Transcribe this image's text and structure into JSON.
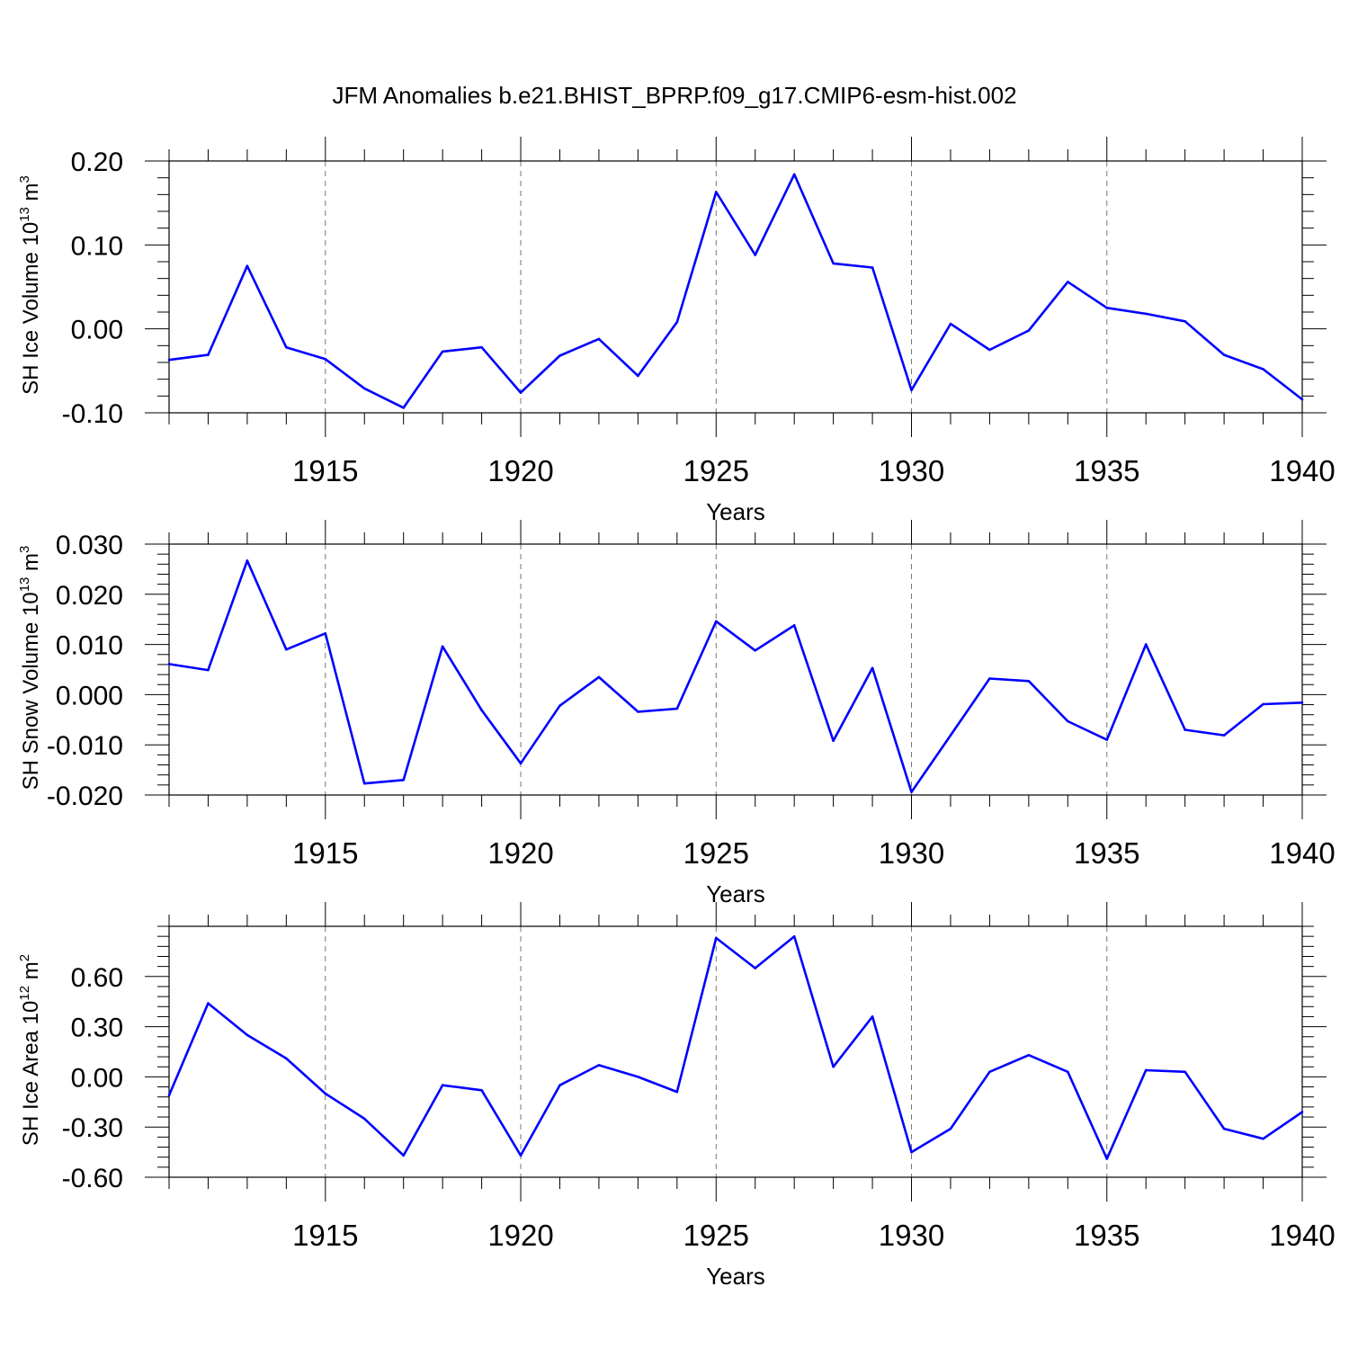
{
  "title": "JFM Anomalies b.e21.BHIST_BPRP.f09_g17.CMIP6-esm-hist.002",
  "chart_data": [
    {
      "type": "line",
      "xlabel": "Years",
      "ylabel": "SH Ice Volume 10",
      "ylabel_exp": "13",
      "ylabel_unit": " m",
      "ylabel_unit_exp": "3",
      "xlim": [
        1911,
        1940
      ],
      "ylim": [
        -0.1,
        0.2
      ],
      "yticks": [
        -0.1,
        0.0,
        0.1,
        0.2
      ],
      "ytick_labels": [
        "-0.10",
        "0.00",
        "0.10",
        "0.20"
      ],
      "xticks": [
        1915,
        1920,
        1925,
        1930,
        1935,
        1940
      ],
      "xtick_labels": [
        "1915",
        "1920",
        "1925",
        "1930",
        "1935",
        "1940"
      ],
      "grid": "dashed vertical at major x ticks",
      "color": "#0000ff",
      "series": [
        {
          "x": [
            1911,
            1912,
            1913,
            1914,
            1915,
            1916,
            1917,
            1918,
            1919,
            1920,
            1921,
            1922,
            1923,
            1924,
            1925,
            1926,
            1927,
            1928,
            1929,
            1930,
            1931,
            1932,
            1933,
            1934,
            1935,
            1936,
            1937,
            1938,
            1939,
            1940
          ],
          "values": [
            -0.037,
            -0.031,
            0.075,
            -0.022,
            -0.036,
            -0.071,
            -0.094,
            -0.027,
            -0.022,
            -0.076,
            -0.032,
            -0.012,
            -0.056,
            0.008,
            0.163,
            0.088,
            0.184,
            0.078,
            0.073,
            -0.073,
            0.006,
            -0.025,
            -0.002,
            0.056,
            0.025,
            0.018,
            0.009,
            -0.031,
            -0.048,
            -0.084
          ]
        }
      ]
    },
    {
      "type": "line",
      "xlabel": "Years",
      "ylabel": "SH Snow Volume 10",
      "ylabel_exp": "13",
      "ylabel_unit": " m",
      "ylabel_unit_exp": "3",
      "xlim": [
        1911,
        1940
      ],
      "ylim": [
        -0.02,
        0.03
      ],
      "yticks": [
        -0.02,
        -0.01,
        0.0,
        0.01,
        0.02,
        0.03
      ],
      "ytick_labels": [
        "-0.020",
        "-0.010",
        "0.000",
        "0.010",
        "0.020",
        "0.030"
      ],
      "xticks": [
        1915,
        1920,
        1925,
        1930,
        1935,
        1940
      ],
      "xtick_labels": [
        "1915",
        "1920",
        "1925",
        "1930",
        "1935",
        "1940"
      ],
      "grid": "dashed vertical at major x ticks",
      "color": "#0000ff",
      "series": [
        {
          "x": [
            1911,
            1912,
            1913,
            1914,
            1915,
            1916,
            1917,
            1918,
            1919,
            1920,
            1921,
            1922,
            1923,
            1924,
            1925,
            1926,
            1927,
            1928,
            1929,
            1930,
            1931,
            1932,
            1933,
            1934,
            1935,
            1936,
            1937,
            1938,
            1939,
            1940
          ],
          "values": [
            0.0061,
            0.0049,
            0.0267,
            0.009,
            0.0122,
            -0.0177,
            -0.017,
            0.0096,
            -0.0031,
            -0.0137,
            -0.0022,
            0.0035,
            -0.0034,
            -0.0028,
            0.0146,
            0.0088,
            0.0138,
            -0.0092,
            0.0053,
            -0.0194,
            -0.0081,
            0.0032,
            0.0027,
            -0.0053,
            -0.009,
            0.01,
            -0.007,
            -0.0081,
            -0.0019,
            -0.0016
          ]
        }
      ]
    },
    {
      "type": "line",
      "xlabel": "Years",
      "ylabel": "SH Ice Area 10",
      "ylabel_exp": "12",
      "ylabel_unit": " m",
      "ylabel_unit_exp": "2",
      "xlim": [
        1911,
        1940
      ],
      "ylim": [
        -0.6,
        0.9
      ],
      "yticks": [
        -0.6,
        -0.3,
        0.0,
        0.3,
        0.6
      ],
      "ytick_labels": [
        "-0.60",
        "-0.30",
        "0.00",
        "0.30",
        "0.60"
      ],
      "xticks": [
        1915,
        1920,
        1925,
        1930,
        1935,
        1940
      ],
      "xtick_labels": [
        "1915",
        "1920",
        "1925",
        "1930",
        "1935",
        "1940"
      ],
      "grid": "dashed vertical at major x ticks",
      "color": "#0000ff",
      "series": [
        {
          "x": [
            1911,
            1912,
            1913,
            1914,
            1915,
            1916,
            1917,
            1918,
            1919,
            1920,
            1921,
            1922,
            1923,
            1924,
            1925,
            1926,
            1927,
            1928,
            1929,
            1930,
            1931,
            1932,
            1933,
            1934,
            1935,
            1936,
            1937,
            1938,
            1939,
            1940
          ],
          "values": [
            -0.11,
            0.44,
            0.25,
            0.11,
            -0.1,
            -0.25,
            -0.47,
            -0.05,
            -0.08,
            -0.47,
            -0.05,
            0.07,
            0.0,
            -0.09,
            0.83,
            0.65,
            0.84,
            0.06,
            0.36,
            -0.45,
            -0.31,
            0.03,
            0.13,
            0.03,
            -0.49,
            0.04,
            0.03,
            -0.31,
            -0.37,
            -0.21
          ]
        }
      ]
    }
  ]
}
